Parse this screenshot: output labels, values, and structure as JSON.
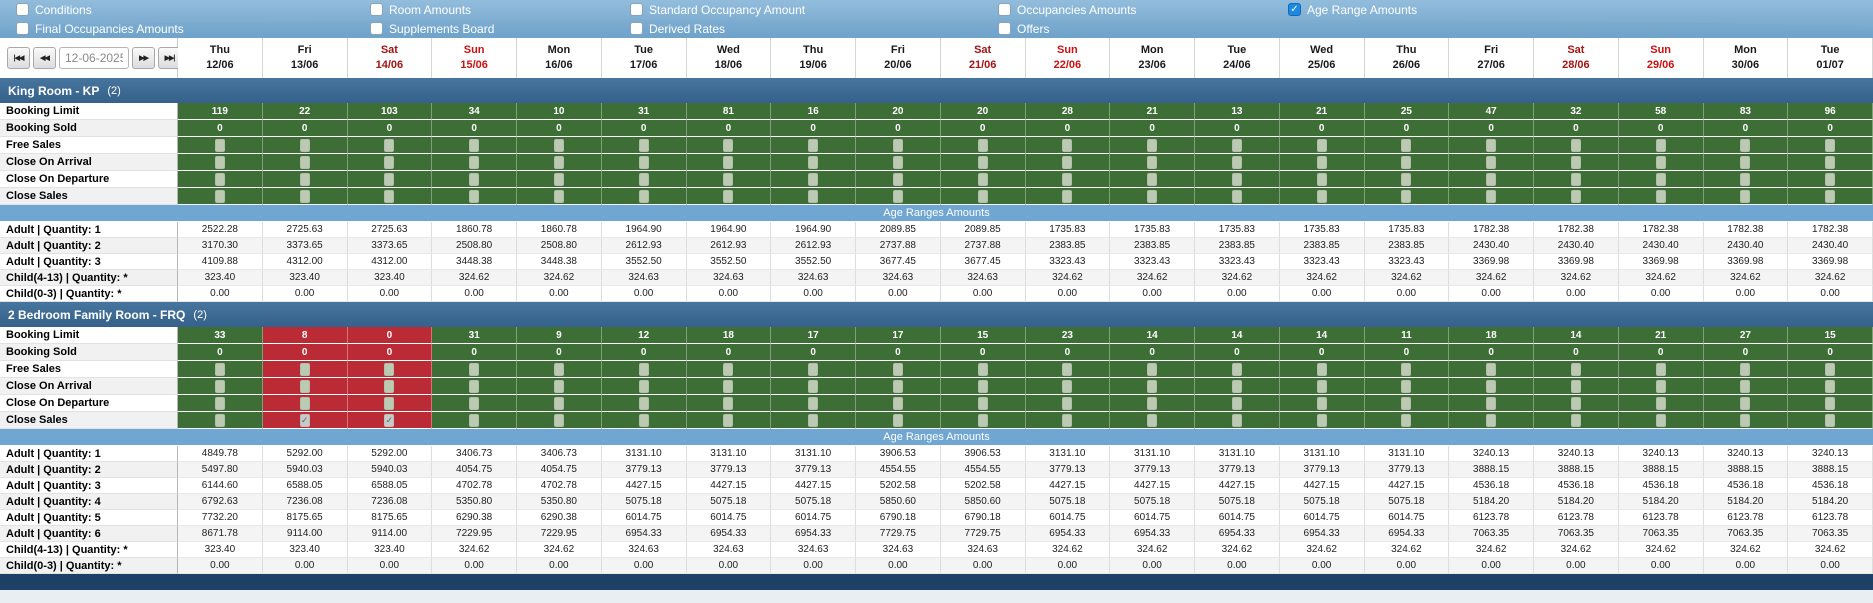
{
  "colors": {
    "check_blue": "#1e88e5",
    "green_cell": "#3c6e36",
    "red_cell": "#bb2b35",
    "age_blue": "#6fa6d2",
    "navy_bar": "#1d4065",
    "sat_red": "#a31414",
    "sun_red": "#cc1111"
  },
  "filters": {
    "row1": [
      {
        "label": "Conditions",
        "checked": false
      },
      {
        "label": "Room Amounts",
        "checked": false
      },
      {
        "label": "Standard Occupancy Amount",
        "checked": false
      },
      {
        "label": "Occupancies Amounts",
        "checked": false
      },
      {
        "label": "Age Range Amounts",
        "checked": true
      }
    ],
    "row2": [
      {
        "label": "Final Occupancies Amounts",
        "checked": false
      },
      {
        "label": "Supplements Board",
        "checked": false
      },
      {
        "label": "Derived Rates",
        "checked": false
      },
      {
        "label": "Offers",
        "checked": false
      }
    ],
    "checkmark": "✓"
  },
  "date_nav": {
    "value": "12-06-2025",
    "icons": {
      "first": "|◀◀",
      "prev": "◀◀",
      "next": "▶▶",
      "last": "▶▶|"
    }
  },
  "columns": [
    {
      "day": "Thu",
      "date": "12/06",
      "type": "weekday"
    },
    {
      "day": "Fri",
      "date": "13/06",
      "type": "weekday"
    },
    {
      "day": "Sat",
      "date": "14/06",
      "type": "sat"
    },
    {
      "day": "Sun",
      "date": "15/06",
      "type": "sun"
    },
    {
      "day": "Mon",
      "date": "16/06",
      "type": "weekday"
    },
    {
      "day": "Tue",
      "date": "17/06",
      "type": "weekday"
    },
    {
      "day": "Wed",
      "date": "18/06",
      "type": "weekday"
    },
    {
      "day": "Thu",
      "date": "19/06",
      "type": "weekday"
    },
    {
      "day": "Fri",
      "date": "20/06",
      "type": "weekday"
    },
    {
      "day": "Sat",
      "date": "21/06",
      "type": "sat"
    },
    {
      "day": "Sun",
      "date": "22/06",
      "type": "sun"
    },
    {
      "day": "Mon",
      "date": "23/06",
      "type": "weekday"
    },
    {
      "day": "Tue",
      "date": "24/06",
      "type": "weekday"
    },
    {
      "day": "Wed",
      "date": "25/06",
      "type": "weekday"
    },
    {
      "day": "Thu",
      "date": "26/06",
      "type": "weekday"
    },
    {
      "day": "Fri",
      "date": "27/06",
      "type": "weekday"
    },
    {
      "day": "Sat",
      "date": "28/06",
      "type": "sat"
    },
    {
      "day": "Sun",
      "date": "29/06",
      "type": "sun"
    },
    {
      "day": "Mon",
      "date": "30/06",
      "type": "weekday"
    },
    {
      "day": "Tue",
      "date": "01/07",
      "type": "weekday"
    }
  ],
  "sections": [
    {
      "title": "King Room - KP",
      "count": "(2)",
      "red_columns": [],
      "age_header": "Age Ranges Amounts",
      "control_rows": [
        {
          "label": "Booking Limit",
          "kind": "number",
          "values": [
            "119",
            "22",
            "103",
            "34",
            "10",
            "31",
            "81",
            "16",
            "20",
            "20",
            "28",
            "21",
            "13",
            "21",
            "25",
            "47",
            "32",
            "58",
            "83",
            "96"
          ]
        },
        {
          "label": "Booking Sold",
          "kind": "number",
          "values": [
            "0",
            "0",
            "0",
            "0",
            "0",
            "0",
            "0",
            "0",
            "0",
            "0",
            "0",
            "0",
            "0",
            "0",
            "0",
            "0",
            "0",
            "0",
            "0",
            "0"
          ]
        },
        {
          "label": "Free Sales",
          "kind": "check",
          "checked": [
            false,
            false,
            false,
            false,
            false,
            false,
            false,
            false,
            false,
            false,
            false,
            false,
            false,
            false,
            false,
            false,
            false,
            false,
            false,
            false
          ]
        },
        {
          "label": "Close On Arrival",
          "kind": "check",
          "checked": [
            false,
            false,
            false,
            false,
            false,
            false,
            false,
            false,
            false,
            false,
            false,
            false,
            false,
            false,
            false,
            false,
            false,
            false,
            false,
            false
          ]
        },
        {
          "label": "Close On Departure",
          "kind": "check",
          "checked": [
            false,
            false,
            false,
            false,
            false,
            false,
            false,
            false,
            false,
            false,
            false,
            false,
            false,
            false,
            false,
            false,
            false,
            false,
            false,
            false
          ]
        },
        {
          "label": "Close Sales",
          "kind": "check",
          "checked": [
            false,
            false,
            false,
            false,
            false,
            false,
            false,
            false,
            false,
            false,
            false,
            false,
            false,
            false,
            false,
            false,
            false,
            false,
            false,
            false
          ]
        }
      ],
      "amount_rows": [
        {
          "label": "Adult | Quantity: 1",
          "values": [
            "2522.28",
            "2725.63",
            "2725.63",
            "1860.78",
            "1860.78",
            "1964.90",
            "1964.90",
            "1964.90",
            "2089.85",
            "2089.85",
            "1735.83",
            "1735.83",
            "1735.83",
            "1735.83",
            "1735.83",
            "1782.38",
            "1782.38",
            "1782.38",
            "1782.38",
            "1782.38"
          ]
        },
        {
          "label": "Adult | Quantity: 2",
          "values": [
            "3170.30",
            "3373.65",
            "3373.65",
            "2508.80",
            "2508.80",
            "2612.93",
            "2612.93",
            "2612.93",
            "2737.88",
            "2737.88",
            "2383.85",
            "2383.85",
            "2383.85",
            "2383.85",
            "2383.85",
            "2430.40",
            "2430.40",
            "2430.40",
            "2430.40",
            "2430.40"
          ]
        },
        {
          "label": "Adult | Quantity: 3",
          "values": [
            "4109.88",
            "4312.00",
            "4312.00",
            "3448.38",
            "3448.38",
            "3552.50",
            "3552.50",
            "3552.50",
            "3677.45",
            "3677.45",
            "3323.43",
            "3323.43",
            "3323.43",
            "3323.43",
            "3323.43",
            "3369.98",
            "3369.98",
            "3369.98",
            "3369.98",
            "3369.98"
          ]
        },
        {
          "label": "Child(4-13) | Quantity: *",
          "values": [
            "323.40",
            "323.40",
            "323.40",
            "324.62",
            "324.62",
            "324.63",
            "324.63",
            "324.63",
            "324.63",
            "324.63",
            "324.62",
            "324.62",
            "324.62",
            "324.62",
            "324.62",
            "324.62",
            "324.62",
            "324.62",
            "324.62",
            "324.62"
          ]
        },
        {
          "label": "Child(0-3) | Quantity: *",
          "values": [
            "0.00",
            "0.00",
            "0.00",
            "0.00",
            "0.00",
            "0.00",
            "0.00",
            "0.00",
            "0.00",
            "0.00",
            "0.00",
            "0.00",
            "0.00",
            "0.00",
            "0.00",
            "0.00",
            "0.00",
            "0.00",
            "0.00",
            "0.00"
          ]
        }
      ]
    },
    {
      "title": "2 Bedroom Family Room - FRQ",
      "count": "(2)",
      "red_columns": [
        1,
        2
      ],
      "age_header": "Age Ranges Amounts",
      "control_rows": [
        {
          "label": "Booking Limit",
          "kind": "number",
          "values": [
            "33",
            "8",
            "0",
            "31",
            "9",
            "12",
            "18",
            "17",
            "17",
            "15",
            "23",
            "14",
            "14",
            "14",
            "11",
            "18",
            "14",
            "21",
            "27",
            "15"
          ]
        },
        {
          "label": "Booking Sold",
          "kind": "number",
          "values": [
            "0",
            "0",
            "0",
            "0",
            "0",
            "0",
            "0",
            "0",
            "0",
            "0",
            "0",
            "0",
            "0",
            "0",
            "0",
            "0",
            "0",
            "0",
            "0",
            "0"
          ]
        },
        {
          "label": "Free Sales",
          "kind": "check",
          "checked": [
            false,
            false,
            false,
            false,
            false,
            false,
            false,
            false,
            false,
            false,
            false,
            false,
            false,
            false,
            false,
            false,
            false,
            false,
            false,
            false
          ]
        },
        {
          "label": "Close On Arrival",
          "kind": "check",
          "checked": [
            false,
            false,
            false,
            false,
            false,
            false,
            false,
            false,
            false,
            false,
            false,
            false,
            false,
            false,
            false,
            false,
            false,
            false,
            false,
            false
          ]
        },
        {
          "label": "Close On Departure",
          "kind": "check",
          "checked": [
            false,
            false,
            false,
            false,
            false,
            false,
            false,
            false,
            false,
            false,
            false,
            false,
            false,
            false,
            false,
            false,
            false,
            false,
            false,
            false
          ]
        },
        {
          "label": "Close Sales",
          "kind": "check",
          "checked": [
            false,
            true,
            true,
            false,
            false,
            false,
            false,
            false,
            false,
            false,
            false,
            false,
            false,
            false,
            false,
            false,
            false,
            false,
            false,
            false
          ]
        }
      ],
      "amount_rows": [
        {
          "label": "Adult | Quantity: 1",
          "values": [
            "4849.78",
            "5292.00",
            "5292.00",
            "3406.73",
            "3406.73",
            "3131.10",
            "3131.10",
            "3131.10",
            "3906.53",
            "3906.53",
            "3131.10",
            "3131.10",
            "3131.10",
            "3131.10",
            "3131.10",
            "3240.13",
            "3240.13",
            "3240.13",
            "3240.13",
            "3240.13"
          ]
        },
        {
          "label": "Adult | Quantity: 2",
          "values": [
            "5497.80",
            "5940.03",
            "5940.03",
            "4054.75",
            "4054.75",
            "3779.13",
            "3779.13",
            "3779.13",
            "4554.55",
            "4554.55",
            "3779.13",
            "3779.13",
            "3779.13",
            "3779.13",
            "3779.13",
            "3888.15",
            "3888.15",
            "3888.15",
            "3888.15",
            "3888.15"
          ]
        },
        {
          "label": "Adult | Quantity: 3",
          "values": [
            "6144.60",
            "6588.05",
            "6588.05",
            "4702.78",
            "4702.78",
            "4427.15",
            "4427.15",
            "4427.15",
            "5202.58",
            "5202.58",
            "4427.15",
            "4427.15",
            "4427.15",
            "4427.15",
            "4427.15",
            "4536.18",
            "4536.18",
            "4536.18",
            "4536.18",
            "4536.18"
          ]
        },
        {
          "label": "Adult | Quantity: 4",
          "values": [
            "6792.63",
            "7236.08",
            "7236.08",
            "5350.80",
            "5350.80",
            "5075.18",
            "5075.18",
            "5075.18",
            "5850.60",
            "5850.60",
            "5075.18",
            "5075.18",
            "5075.18",
            "5075.18",
            "5075.18",
            "5184.20",
            "5184.20",
            "5184.20",
            "5184.20",
            "5184.20"
          ]
        },
        {
          "label": "Adult | Quantity: 5",
          "values": [
            "7732.20",
            "8175.65",
            "8175.65",
            "6290.38",
            "6290.38",
            "6014.75",
            "6014.75",
            "6014.75",
            "6790.18",
            "6790.18",
            "6014.75",
            "6014.75",
            "6014.75",
            "6014.75",
            "6014.75",
            "6123.78",
            "6123.78",
            "6123.78",
            "6123.78",
            "6123.78"
          ]
        },
        {
          "label": "Adult | Quantity: 6",
          "values": [
            "8671.78",
            "9114.00",
            "9114.00",
            "7229.95",
            "7229.95",
            "6954.33",
            "6954.33",
            "6954.33",
            "7729.75",
            "7729.75",
            "6954.33",
            "6954.33",
            "6954.33",
            "6954.33",
            "6954.33",
            "7063.35",
            "7063.35",
            "7063.35",
            "7063.35",
            "7063.35"
          ]
        },
        {
          "label": "Child(4-13) | Quantity: *",
          "values": [
            "323.40",
            "323.40",
            "323.40",
            "324.62",
            "324.62",
            "324.63",
            "324.63",
            "324.63",
            "324.63",
            "324.63",
            "324.62",
            "324.62",
            "324.62",
            "324.62",
            "324.62",
            "324.62",
            "324.62",
            "324.62",
            "324.62",
            "324.62"
          ]
        },
        {
          "label": "Child(0-3) | Quantity: *",
          "values": [
            "0.00",
            "0.00",
            "0.00",
            "0.00",
            "0.00",
            "0.00",
            "0.00",
            "0.00",
            "0.00",
            "0.00",
            "0.00",
            "0.00",
            "0.00",
            "0.00",
            "0.00",
            "0.00",
            "0.00",
            "0.00",
            "0.00",
            "0.00"
          ]
        }
      ]
    }
  ]
}
